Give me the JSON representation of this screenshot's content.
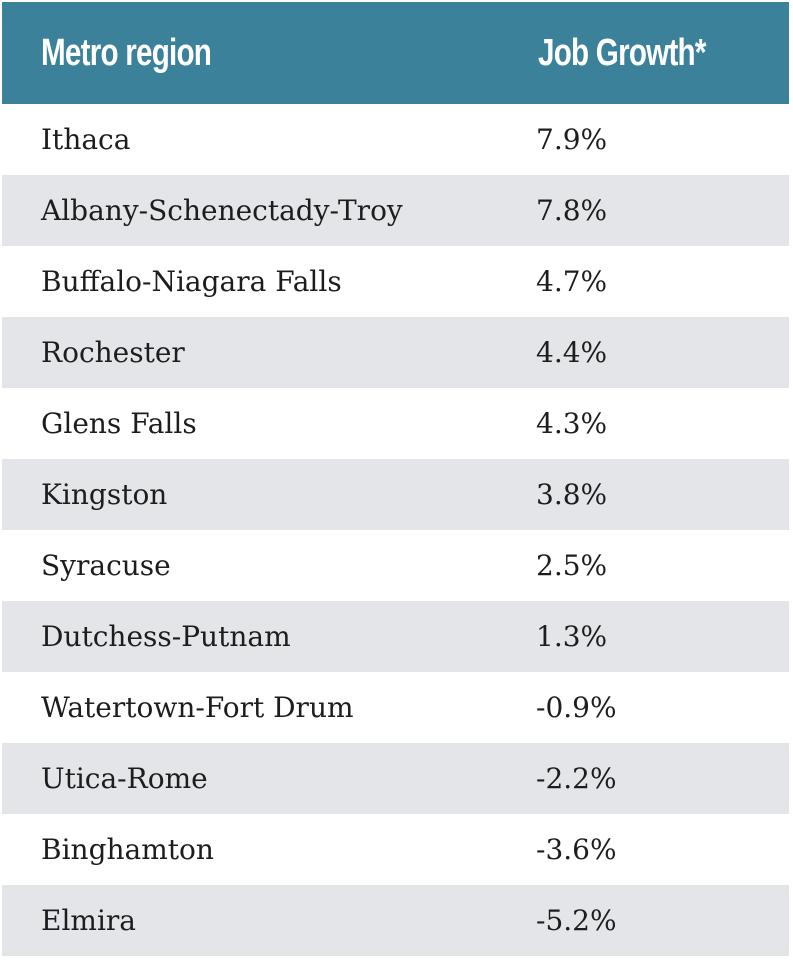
{
  "chart_data": {
    "type": "table",
    "columns": [
      "Metro region",
      "Job Growth*"
    ],
    "rows": [
      {
        "region": "Ithaca",
        "growth": "7.9%"
      },
      {
        "region": "Albany-Schenectady-Troy",
        "growth": "7.8%"
      },
      {
        "region": "Buffalo-Niagara Falls",
        "growth": "4.7%"
      },
      {
        "region": "Rochester",
        "growth": "4.4%"
      },
      {
        "region": "Glens Falls",
        "growth": "4.3%"
      },
      {
        "region": "Kingston",
        "growth": "3.8%"
      },
      {
        "region": "Syracuse",
        "growth": "2.5%"
      },
      {
        "region": "Dutchess-Putnam",
        "growth": "1.3%"
      },
      {
        "region": "Watertown-Fort Drum",
        "growth": "-0.9%"
      },
      {
        "region": "Utica-Rome",
        "growth": "-2.2%"
      },
      {
        "region": "Binghamton",
        "growth": "-3.6%"
      },
      {
        "region": "Elmira",
        "growth": "-5.2%"
      }
    ]
  },
  "colors": {
    "header_bg": "#3a8199",
    "header_text": "#ffffff",
    "row_alt_bg": "#e4e5e9",
    "row_bg": "#ffffff",
    "text": "#1d1d1d"
  }
}
